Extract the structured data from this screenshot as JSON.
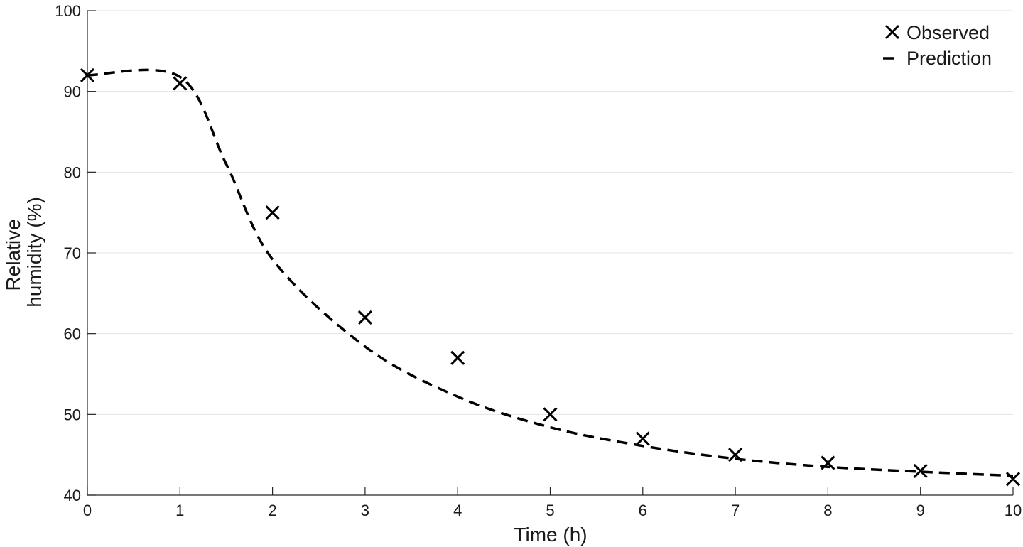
{
  "chart_data": {
    "type": "line",
    "xlabel": "Time (h)",
    "ylabel_lines": [
      "Relative",
      "humidity (%)"
    ],
    "xlim": [
      0,
      10
    ],
    "ylim": [
      40,
      100
    ],
    "x_ticks": [
      0,
      1,
      2,
      3,
      4,
      5,
      6,
      7,
      8,
      9,
      10
    ],
    "y_ticks": [
      40,
      50,
      60,
      70,
      80,
      90,
      100
    ],
    "grid": "horizontal",
    "legend_position": "top-right",
    "colors": {
      "series": "#000000",
      "grid": "#e3e3e3",
      "axis": "#262626"
    },
    "series": [
      {
        "name": "Observed",
        "style": "x-markers",
        "x": [
          0,
          1,
          2,
          3,
          4,
          5,
          6,
          7,
          8,
          9,
          10
        ],
        "y": [
          92,
          91,
          75,
          62,
          57,
          50,
          47,
          45,
          44,
          43,
          42
        ]
      },
      {
        "name": "Prediction",
        "style": "dashed-line",
        "x": [
          0,
          1,
          1.5,
          2,
          3,
          4,
          5,
          6,
          7,
          8,
          9,
          10
        ],
        "y": [
          92,
          91.8,
          81,
          69.2,
          58.4,
          52.2,
          48.4,
          46.1,
          44.5,
          43.5,
          42.9,
          42.4
        ]
      }
    ]
  }
}
